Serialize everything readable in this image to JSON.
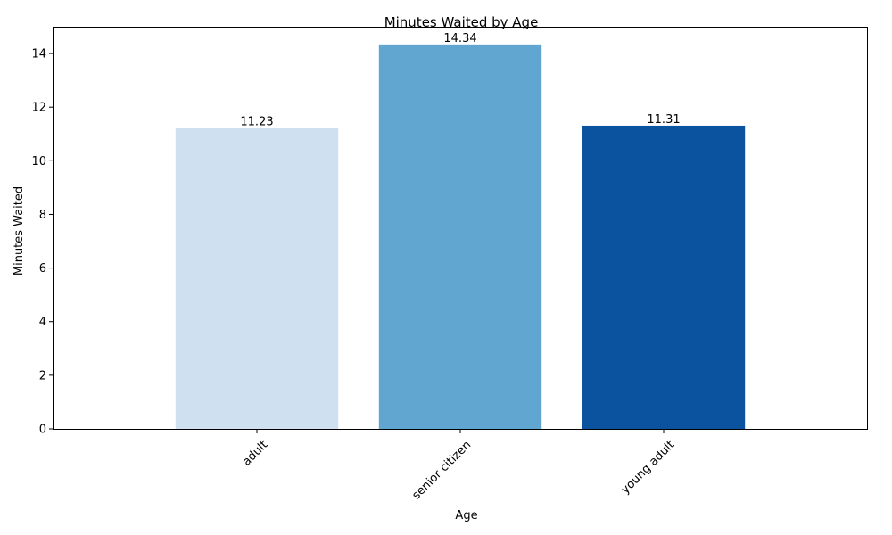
{
  "chart_data": {
    "type": "bar",
    "title": "Minutes Waited by Age",
    "xlabel": "Age",
    "ylabel": "Minutes Waited",
    "categories": [
      "adult",
      "senior citizen",
      "young adult"
    ],
    "values": [
      11.23,
      14.34,
      11.31
    ],
    "data_labels": [
      "11.23",
      "14.34",
      "11.31"
    ],
    "bar_colors": [
      "#cfe1f0",
      "#60a6d1",
      "#0b539e"
    ],
    "ylim": [
      0,
      15
    ],
    "yticks": [
      0,
      2,
      4,
      6,
      8,
      10,
      12,
      14
    ],
    "grid": false,
    "legend": "none",
    "xtick_rotation": 45
  }
}
